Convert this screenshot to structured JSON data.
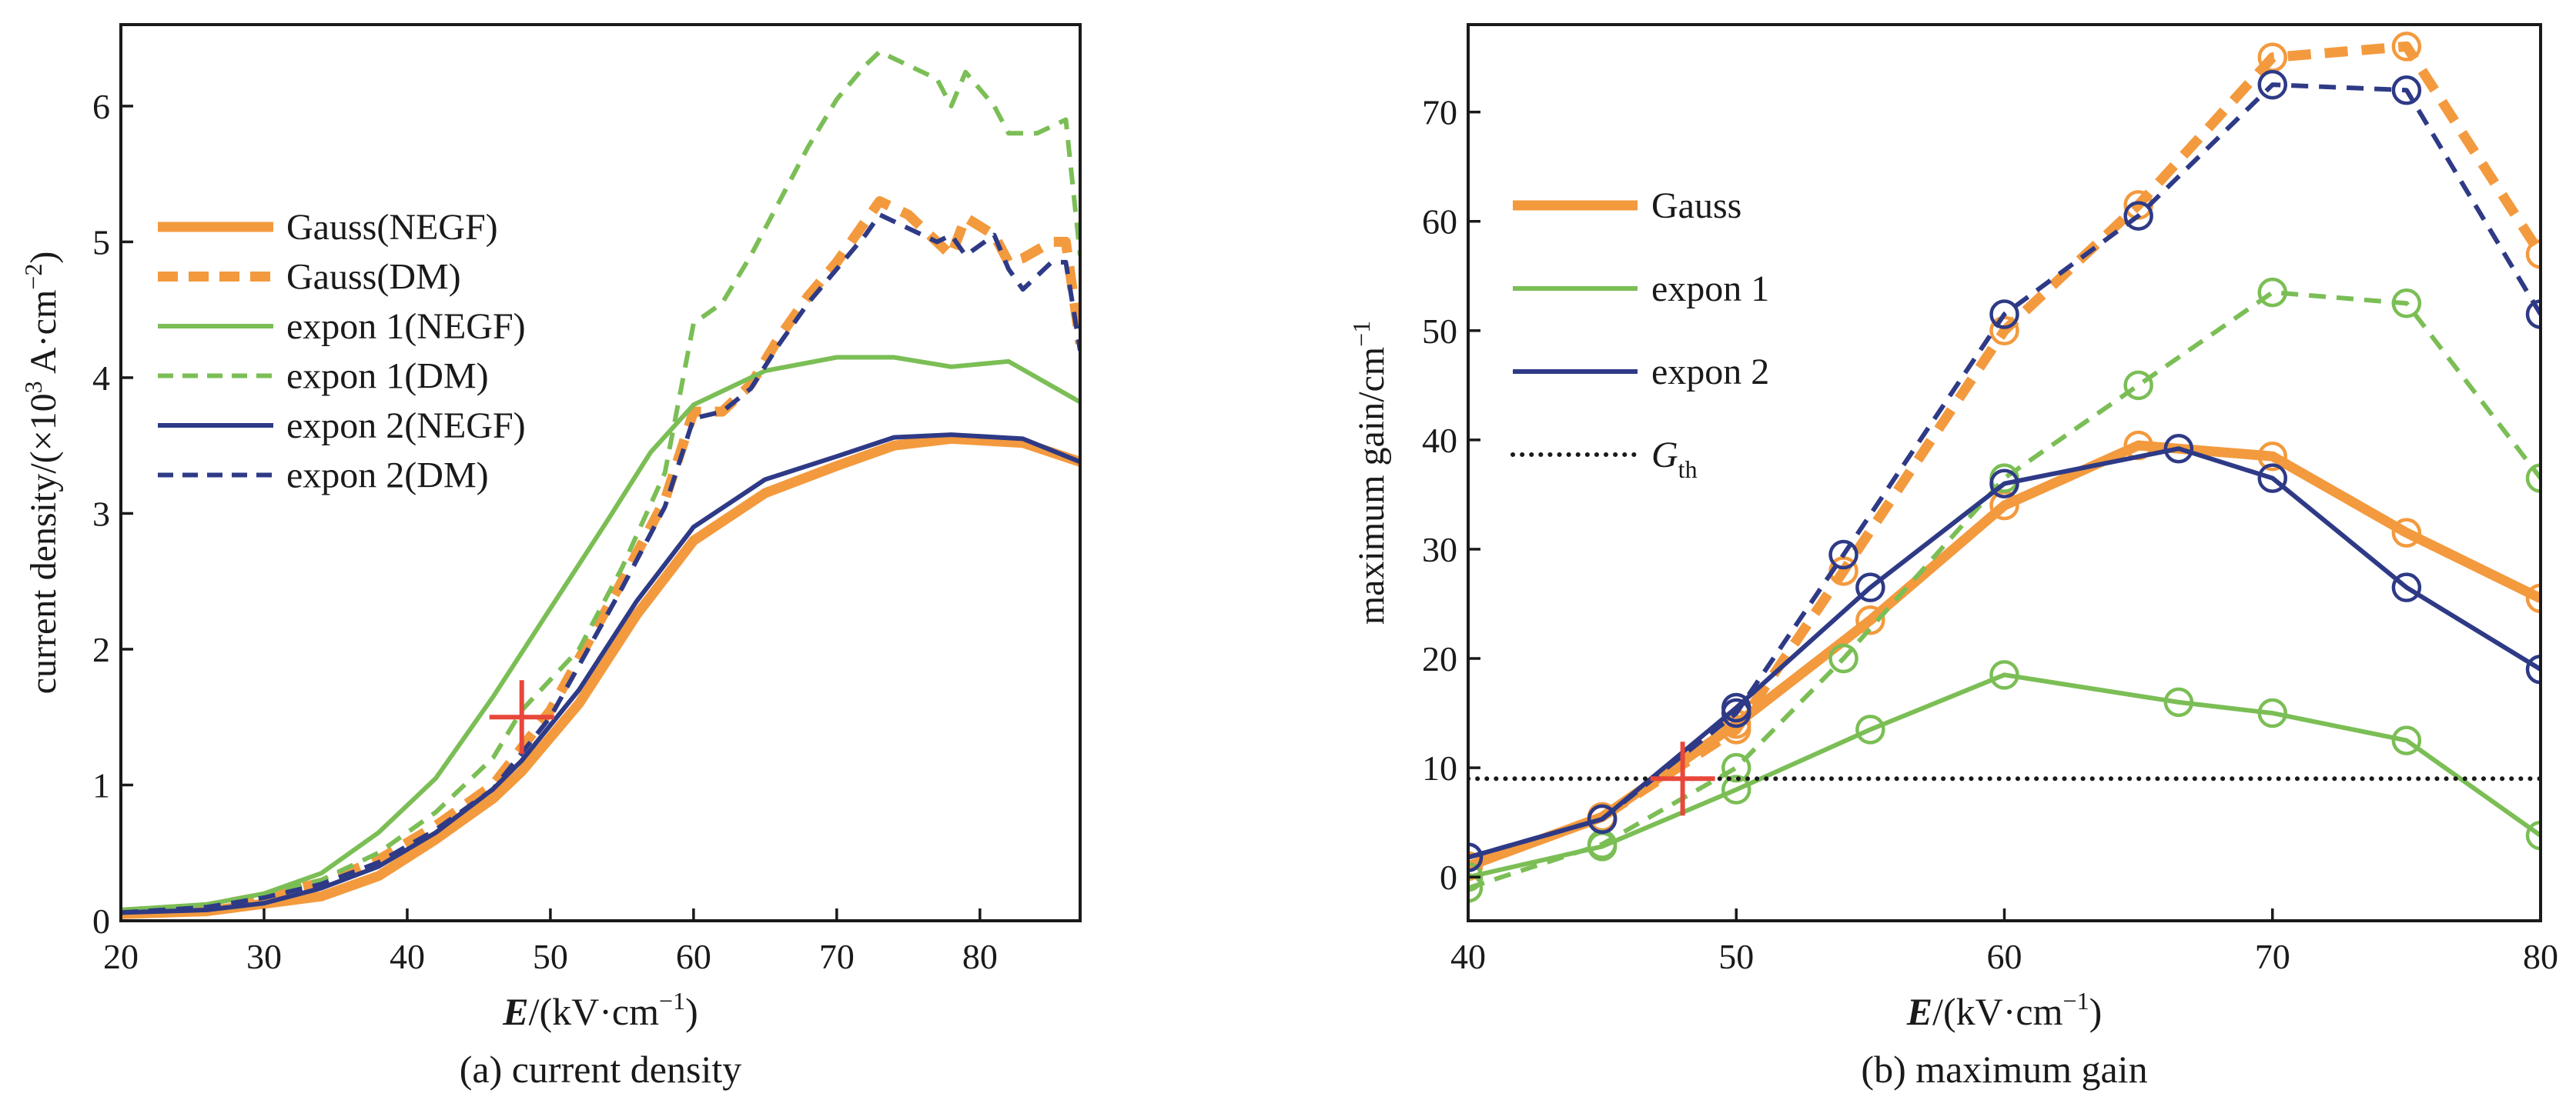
{
  "colors": {
    "orange": "#F39A3E",
    "green": "#7BBE55",
    "navy": "#2E3A86",
    "red": "#E8473A",
    "black": "#1a1a1a"
  },
  "chart_data": [
    {
      "type": "line",
      "caption": "(a) current density",
      "xlabel": {
        "var": "E",
        "unit": "/(kV·cm",
        "sup": "−1",
        "close": ")"
      },
      "ylabel": {
        "text": "current density/(×10",
        "sup1": "3",
        "mid": " A·cm",
        "sup2": "−2",
        "close": ")"
      },
      "xlim": [
        20,
        87
      ],
      "ylim": [
        0,
        6.6
      ],
      "xticks": [
        20,
        30,
        40,
        50,
        60,
        70,
        80
      ],
      "yticks": [
        0,
        1,
        2,
        3,
        4,
        5,
        6
      ],
      "legend_position": "left-middle",
      "series": [
        {
          "name": "Gauss(NEGF)",
          "color": "orange",
          "style": "solid",
          "width": "thick",
          "x": [
            20,
            26,
            34,
            38,
            42,
            46,
            48,
            52,
            56,
            60,
            65,
            70,
            74,
            78,
            83,
            87
          ],
          "y": [
            0.05,
            0.07,
            0.18,
            0.33,
            0.6,
            0.9,
            1.1,
            1.6,
            2.25,
            2.8,
            3.15,
            3.35,
            3.5,
            3.55,
            3.52,
            3.38
          ]
        },
        {
          "name": "Gauss(DM)",
          "color": "orange",
          "style": "dashed",
          "width": "thick",
          "x": [
            20,
            26,
            30,
            34,
            38,
            42,
            46,
            50,
            55,
            58,
            60,
            62,
            64,
            66,
            68,
            70,
            72,
            73,
            75,
            77,
            78,
            79,
            81,
            82,
            83,
            85,
            86,
            87
          ],
          "y": [
            0.06,
            0.1,
            0.18,
            0.28,
            0.45,
            0.7,
            1.0,
            1.55,
            2.5,
            3.1,
            3.75,
            3.75,
            3.95,
            4.3,
            4.6,
            4.85,
            5.15,
            5.3,
            5.2,
            5.0,
            4.9,
            5.18,
            5.05,
            4.85,
            4.88,
            5.0,
            5.0,
            4.25
          ]
        },
        {
          "name": "expon 1(NEGF)",
          "color": "green",
          "style": "solid",
          "width": "normal",
          "x": [
            20,
            26,
            30,
            34,
            38,
            42,
            46,
            50,
            54,
            57,
            60,
            65,
            70,
            74,
            78,
            82,
            87
          ],
          "y": [
            0.08,
            0.12,
            0.2,
            0.35,
            0.65,
            1.05,
            1.65,
            2.3,
            2.95,
            3.45,
            3.8,
            4.05,
            4.15,
            4.15,
            4.08,
            4.12,
            3.82
          ]
        },
        {
          "name": "expon 1(DM)",
          "color": "green",
          "style": "dashed",
          "width": "normal",
          "x": [
            20,
            26,
            30,
            34,
            38,
            42,
            46,
            48,
            52,
            55,
            58,
            60,
            62,
            64,
            66,
            68,
            70,
            72,
            73,
            75,
            77,
            78,
            79,
            81,
            82,
            84,
            86,
            87
          ],
          "y": [
            0.07,
            0.11,
            0.19,
            0.3,
            0.5,
            0.8,
            1.2,
            1.55,
            2.0,
            2.6,
            3.3,
            4.4,
            4.55,
            4.9,
            5.3,
            5.7,
            6.05,
            6.3,
            6.4,
            6.3,
            6.2,
            6.0,
            6.25,
            6.0,
            5.8,
            5.8,
            5.9,
            4.9
          ]
        },
        {
          "name": "expon 2(NEGF)",
          "color": "navy",
          "style": "solid",
          "width": "normal",
          "x": [
            20,
            26,
            30,
            34,
            38,
            42,
            46,
            48,
            52,
            56,
            60,
            65,
            70,
            74,
            78,
            83,
            87
          ],
          "y": [
            0.06,
            0.08,
            0.13,
            0.24,
            0.4,
            0.65,
            0.97,
            1.18,
            1.7,
            2.35,
            2.9,
            3.25,
            3.42,
            3.56,
            3.58,
            3.55,
            3.38
          ]
        },
        {
          "name": "expon 2(DM)",
          "color": "navy",
          "style": "dashed",
          "width": "normal",
          "x": [
            20,
            26,
            30,
            34,
            38,
            42,
            46,
            50,
            55,
            58,
            60,
            62,
            64,
            66,
            68,
            70,
            72,
            73,
            75,
            77,
            78,
            79,
            81,
            82,
            83,
            85,
            86,
            87
          ],
          "y": [
            0.06,
            0.1,
            0.17,
            0.27,
            0.43,
            0.67,
            0.97,
            1.5,
            2.45,
            3.05,
            3.7,
            3.75,
            3.92,
            4.25,
            4.55,
            4.8,
            5.05,
            5.2,
            5.1,
            5.0,
            5.05,
            4.9,
            5.05,
            4.8,
            4.65,
            4.85,
            4.85,
            4.2
          ]
        }
      ],
      "marker": {
        "symbol": "+",
        "color": "red",
        "x": 48,
        "y": 1.5
      }
    },
    {
      "type": "line",
      "caption": "(b) maximum gain",
      "xlabel": {
        "var": "E",
        "unit": "/(kV·cm",
        "sup": "−1",
        "close": ")"
      },
      "ylabel": {
        "text": "maximum gain/cm",
        "sup1": "−1"
      },
      "xlim": [
        40,
        80
      ],
      "ylim": [
        -4,
        78
      ],
      "xticks": [
        40,
        50,
        60,
        70,
        80
      ],
      "yticks": [
        0,
        10,
        20,
        30,
        40,
        50,
        60,
        70
      ],
      "legend_position": "left-upper",
      "legend": [
        {
          "name": "Gauss",
          "color": "orange",
          "style": "solid",
          "width": "thick"
        },
        {
          "name": "expon 1",
          "color": "green",
          "style": "solid",
          "width": "normal"
        },
        {
          "name": "expon 2",
          "color": "navy",
          "style": "solid",
          "width": "normal"
        },
        {
          "name": "G",
          "sub": "th",
          "color": "black",
          "style": "dotted",
          "width": "normal"
        }
      ],
      "series": [
        {
          "name": "Gauss",
          "color": "orange",
          "style": "solid",
          "width": "thick",
          "markers": true,
          "x": [
            40,
            45,
            50,
            55,
            60,
            65,
            70,
            75,
            80
          ],
          "y": [
            1,
            5.5,
            14,
            23.5,
            34,
            39.5,
            38.5,
            31.5,
            25.5
          ]
        },
        {
          "color": "orange",
          "style": "dashed",
          "width": "thick",
          "markers": true,
          "x": [
            40,
            45,
            50,
            54,
            60,
            65,
            70,
            75,
            80
          ],
          "y": [
            1,
            5.5,
            13.5,
            28,
            50,
            61.5,
            75,
            76,
            57
          ]
        },
        {
          "name": "expon 1",
          "color": "green",
          "style": "solid",
          "width": "normal",
          "markers": true,
          "x": [
            40,
            45,
            50,
            55,
            60,
            66.5,
            70,
            75,
            80
          ],
          "y": [
            0,
            2.8,
            8,
            13.5,
            18.5,
            16,
            15,
            12.5,
            3.8
          ]
        },
        {
          "color": "green",
          "style": "dashed",
          "width": "normal",
          "markers": true,
          "x": [
            40,
            45,
            50,
            54,
            60,
            65,
            70,
            75,
            80
          ],
          "y": [
            -1,
            3,
            10,
            20,
            36.5,
            45,
            53.5,
            52.5,
            36.5
          ]
        },
        {
          "name": "expon 2",
          "color": "navy",
          "style": "solid",
          "width": "normal",
          "markers": true,
          "x": [
            40,
            45,
            50,
            55,
            60,
            66.5,
            70,
            75,
            80
          ],
          "y": [
            1.8,
            5.3,
            15.5,
            26.5,
            36,
            39.2,
            36.5,
            26.5,
            19
          ]
        },
        {
          "color": "navy",
          "style": "dashed",
          "width": "normal",
          "markers": true,
          "x": [
            40,
            45,
            50,
            54,
            60,
            65,
            70,
            75,
            80
          ],
          "y": [
            1.8,
            5.3,
            15,
            29.5,
            51.5,
            60.5,
            72.5,
            72,
            51.5
          ]
        },
        {
          "name": "G_th",
          "color": "black",
          "style": "dotted",
          "width": "normal",
          "markers": false,
          "x": [
            40,
            80
          ],
          "y": [
            9,
            9
          ]
        }
      ],
      "marker": {
        "symbol": "+",
        "color": "red",
        "x": 48,
        "y": 9
      }
    }
  ]
}
